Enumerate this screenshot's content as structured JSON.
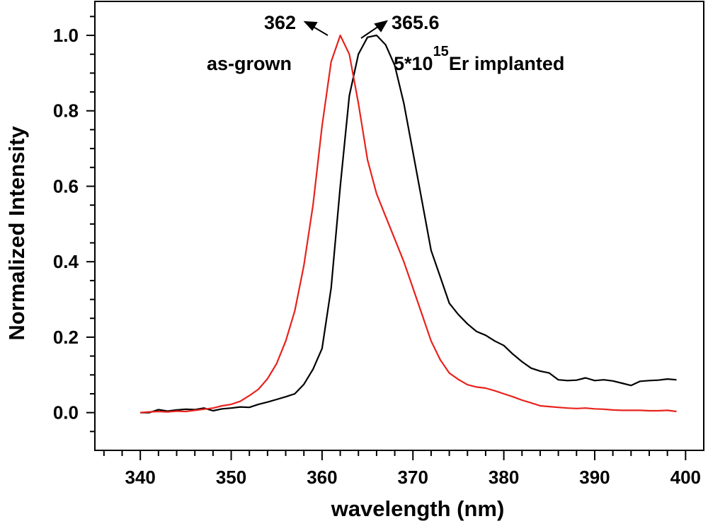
{
  "chart_data": {
    "type": "line",
    "title": "",
    "xlabel": "wavelength (nm)",
    "ylabel": "Normalized Intensity",
    "xlim": [
      335,
      402
    ],
    "ylim": [
      -0.1,
      1.09
    ],
    "xticks": [
      340,
      350,
      360,
      370,
      380,
      390,
      400
    ],
    "xtick_labels": [
      "340",
      "350",
      "360",
      "370",
      "380",
      "390",
      "400"
    ],
    "yticks": [
      0.0,
      0.2,
      0.4,
      0.6,
      0.8,
      1.0
    ],
    "ytick_labels": [
      "0.0",
      "0.2",
      "0.4",
      "0.6",
      "0.8",
      "1.0"
    ],
    "grid": false,
    "series": [
      {
        "name": "as-grown",
        "color": "#e8221c",
        "x": [
          340,
          341,
          342,
          343,
          344,
          345,
          346,
          347,
          348,
          349,
          350,
          351,
          352,
          353,
          354,
          355,
          356,
          357,
          358,
          359,
          360,
          361,
          362,
          363,
          364,
          365,
          366,
          367,
          368,
          369,
          370,
          371,
          372,
          373,
          374,
          375,
          376,
          377,
          378,
          379,
          380,
          381,
          382,
          383,
          384,
          385,
          386,
          387,
          388,
          389,
          390,
          391,
          392,
          393,
          394,
          395,
          396,
          397,
          398,
          399
        ],
        "y": [
          0.0,
          0.002,
          0.003,
          0.002,
          0.004,
          0.003,
          0.006,
          0.009,
          0.012,
          0.018,
          0.022,
          0.03,
          0.045,
          0.062,
          0.09,
          0.13,
          0.19,
          0.27,
          0.39,
          0.55,
          0.76,
          0.93,
          1.0,
          0.95,
          0.82,
          0.67,
          0.58,
          0.52,
          0.46,
          0.4,
          0.33,
          0.26,
          0.19,
          0.14,
          0.105,
          0.088,
          0.074,
          0.068,
          0.065,
          0.058,
          0.05,
          0.042,
          0.033,
          0.026,
          0.018,
          0.016,
          0.014,
          0.012,
          0.011,
          0.012,
          0.01,
          0.009,
          0.007,
          0.006,
          0.006,
          0.006,
          0.005,
          0.005,
          0.006,
          0.003
        ]
      },
      {
        "name": "5*10^15Er implanted",
        "color": "#000000",
        "x": [
          340,
          341,
          342,
          343,
          344,
          345,
          346,
          347,
          348,
          349,
          350,
          351,
          352,
          353,
          354,
          355,
          356,
          357,
          358,
          359,
          360,
          361,
          362,
          363,
          364,
          365,
          366,
          367,
          368,
          369,
          370,
          371,
          372,
          373,
          374,
          375,
          376,
          377,
          378,
          379,
          380,
          381,
          382,
          383,
          384,
          385,
          386,
          387,
          388,
          389,
          390,
          391,
          392,
          393,
          394,
          395,
          396,
          397,
          398,
          399
        ],
        "y": [
          0.0,
          0.0,
          0.008,
          0.004,
          0.007,
          0.009,
          0.008,
          0.012,
          0.005,
          0.01,
          0.012,
          0.015,
          0.014,
          0.022,
          0.028,
          0.035,
          0.042,
          0.05,
          0.075,
          0.115,
          0.17,
          0.33,
          0.6,
          0.84,
          0.95,
          0.995,
          1.0,
          0.975,
          0.92,
          0.82,
          0.69,
          0.56,
          0.43,
          0.36,
          0.29,
          0.26,
          0.235,
          0.215,
          0.205,
          0.19,
          0.178,
          0.155,
          0.135,
          0.118,
          0.11,
          0.105,
          0.087,
          0.085,
          0.086,
          0.092,
          0.085,
          0.087,
          0.084,
          0.078,
          0.072,
          0.083,
          0.085,
          0.086,
          0.089,
          0.087
        ]
      }
    ],
    "annotations": {
      "peak_red": "362",
      "peak_black": "365.6",
      "label_red": "as-grown",
      "label_black_prefix": "5*10",
      "label_black_sup": "15",
      "label_black_suffix": "Er implanted"
    }
  }
}
